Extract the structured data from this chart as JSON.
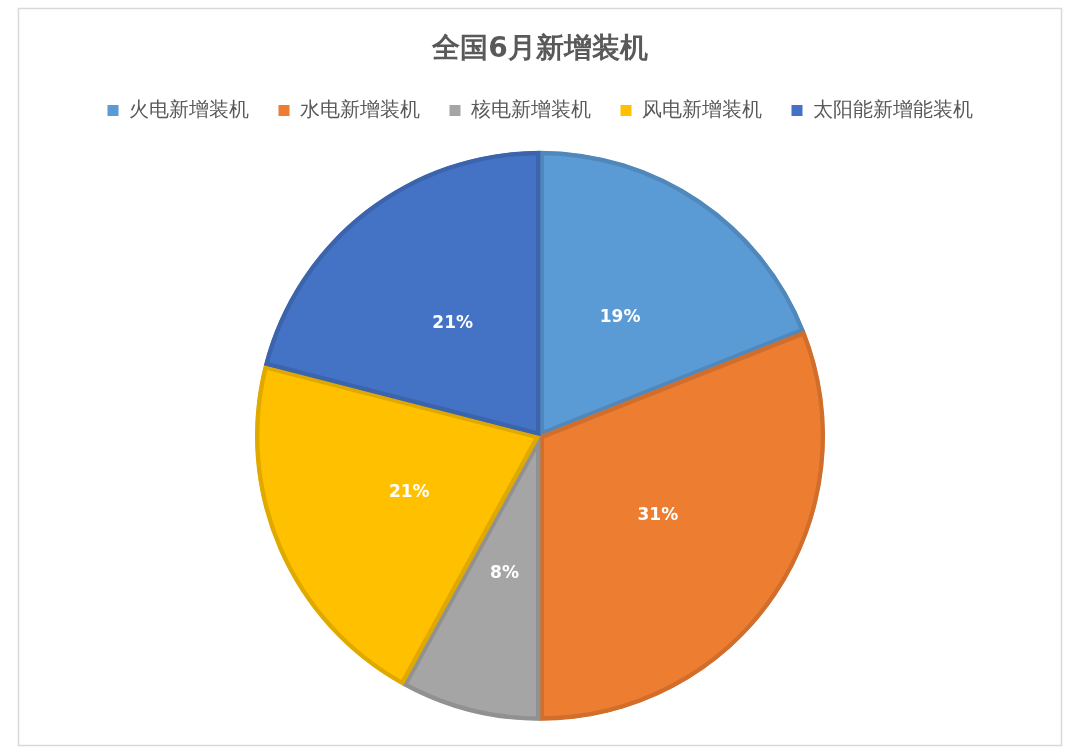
{
  "chart_data": {
    "type": "pie",
    "title": "全国6月新增装机",
    "categories": [
      "火电新增装机",
      "水电新增装机",
      "核电新增装机",
      "风电新增装机",
      "太阳能新增能装机"
    ],
    "values": [
      19,
      31,
      8,
      21,
      21
    ],
    "colors": [
      "#5b9bd5",
      "#ed7d31",
      "#a5a5a5",
      "#ffc000",
      "#4472c4"
    ],
    "value_labels": [
      "19%",
      "31%",
      "8%",
      "21%",
      "21%"
    ],
    "legend": "top"
  }
}
